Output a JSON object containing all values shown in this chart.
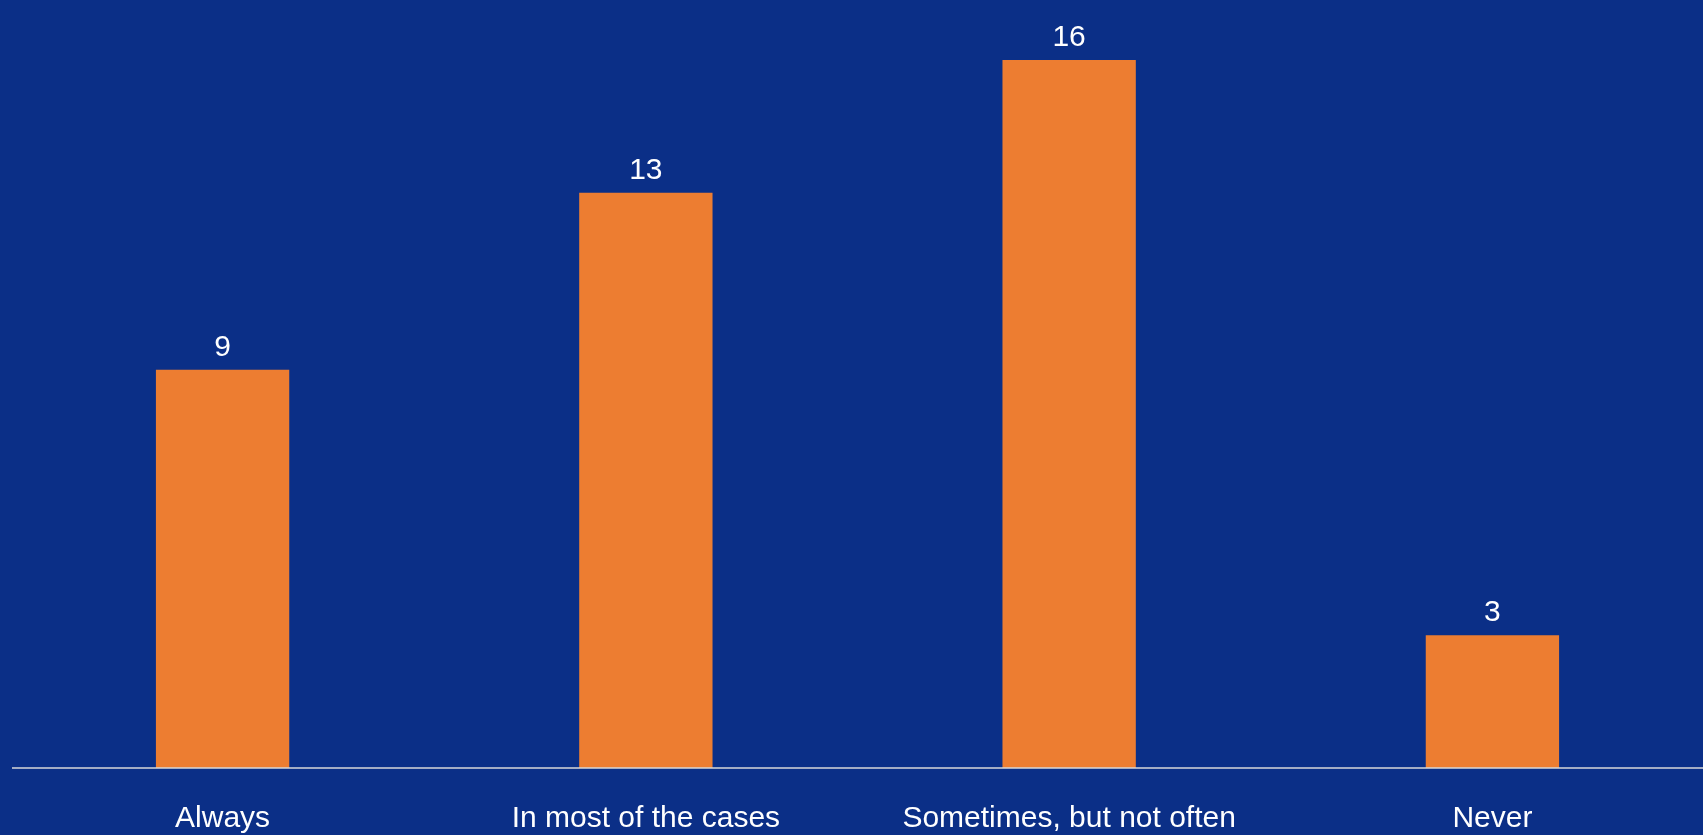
{
  "chart_data": {
    "type": "bar",
    "categories": [
      "Always",
      "In most of the cases",
      "Sometimes, but not often",
      "Never"
    ],
    "values": [
      9,
      13,
      16,
      3
    ],
    "color": "#ed7d31",
    "data_labels": true
  }
}
